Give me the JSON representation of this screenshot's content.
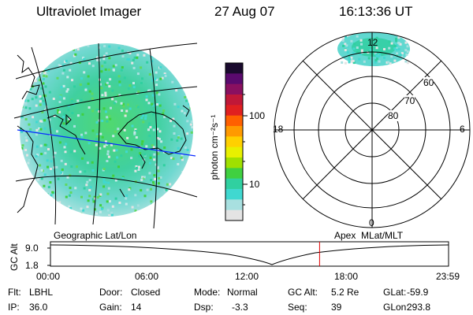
{
  "header": {
    "instrument": "Ultraviolet Imager",
    "date": "27 Aug 07",
    "time": "16:13:36 UT"
  },
  "colorbar": {
    "unit_label": "photon cm⁻²s⁻¹",
    "ticks": [
      "100",
      "10"
    ],
    "colors": [
      "#1a0a2e",
      "#5a0a6e",
      "#8a1060",
      "#c01838",
      "#e02020",
      "#ff6000",
      "#ff9a00",
      "#ffd000",
      "#e8f000",
      "#a0e000",
      "#40d040",
      "#30d0a0",
      "#40d8d0",
      "#a8e0e0",
      "#e4e4e4"
    ]
  },
  "panels": {
    "left_label": "Geographic Lat/Lon",
    "right_label": "Apex  MLat/MLT"
  },
  "polar": {
    "mlt_labels": {
      "top": "12",
      "left": "18",
      "right": "6",
      "bottom": "0"
    },
    "lat_labels": [
      "60",
      "70",
      "80"
    ]
  },
  "timeline": {
    "ylabel": "GC Alt",
    "y_ticks": [
      "9.0",
      "1.8"
    ],
    "x_ticks": [
      "00:00",
      "06:00",
      "12:00",
      "18:00",
      "23:59"
    ],
    "marker_time_hours": 16.227
  },
  "info": {
    "row1": [
      {
        "label": "Flt:",
        "value": "LBHL"
      },
      {
        "label": "Door:",
        "value": "Closed"
      },
      {
        "label": "Mode:",
        "value": "Normal"
      },
      {
        "label": "GC Alt:",
        "value": "5.2 Re"
      },
      {
        "label": "GLat:",
        "value": "-59.9"
      }
    ],
    "row2": [
      {
        "label": "IP:",
        "value": "36.0"
      },
      {
        "label": "Gain:",
        "value": "14"
      },
      {
        "label": "Dsp:",
        "value": "-3.3"
      },
      {
        "label": "Seq:",
        "value": "39"
      },
      {
        "label": "GLon:",
        "value": "293.8"
      }
    ]
  }
}
